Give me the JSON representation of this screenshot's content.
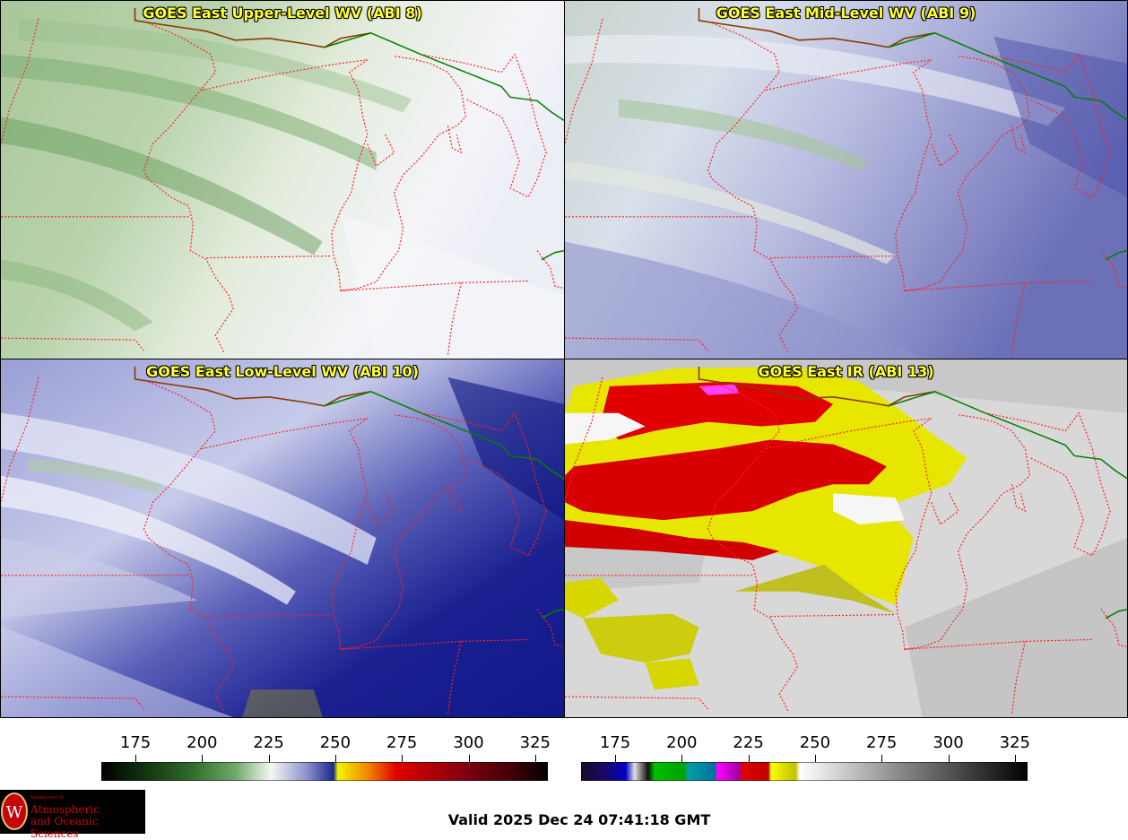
{
  "panels": [
    {
      "title": "GOES East Upper-Level WV (ABI 8)"
    },
    {
      "title": "GOES East Mid-Level WV (ABI 9)"
    },
    {
      "title": "GOES East Low-Level WV (ABI 10)"
    },
    {
      "title": "GOES East IR (ABI 13)"
    }
  ],
  "colorbars": {
    "wv": {
      "ticks": [
        "175",
        "200",
        "225",
        "250",
        "275",
        "300",
        "325"
      ]
    },
    "ir": {
      "ticks": [
        "175",
        "200",
        "225",
        "250",
        "275",
        "300",
        "325"
      ]
    }
  },
  "valid_time": "Valid 2025 Dec 24 07:41:18 GMT",
  "logo": {
    "dept": "Department of",
    "line1": "Atmospheric",
    "line2": "and Oceanic Sciences",
    "seal_letter": "W"
  },
  "colors": {
    "state_border": "#ff2020",
    "country_border_green": "#008000",
    "country_border_brown": "#8b3a00",
    "title_text": "#ffff33"
  }
}
